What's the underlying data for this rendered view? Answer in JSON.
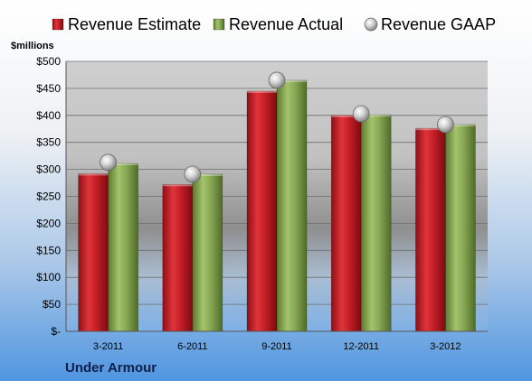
{
  "chart_data": {
    "type": "bar",
    "company": "Under Armour",
    "ylabel": "$millions",
    "categories": [
      "3-2011",
      "6-2011",
      "9-2011",
      "12-2011",
      "3-2012"
    ],
    "series": [
      {
        "name": "Revenue Estimate",
        "kind": "bar",
        "color": "#d0232b",
        "values": [
          292,
          272,
          445,
          400,
          376
        ]
      },
      {
        "name": "Revenue Actual",
        "kind": "bar",
        "color": "#8aac55",
        "values": [
          311,
          291,
          465,
          401,
          383
        ]
      },
      {
        "name": "Revenue GAAP",
        "kind": "marker",
        "color": "#bfbfbf",
        "values": [
          313,
          291,
          465,
          403,
          383
        ]
      }
    ],
    "ylim": [
      0,
      500
    ],
    "yticks": [
      0,
      50,
      100,
      150,
      200,
      250,
      300,
      350,
      400,
      450,
      500
    ],
    "ytick_labels": [
      "$-",
      "$50",
      "$100",
      "$150",
      "$200",
      "$250",
      "$300",
      "$350",
      "$400",
      "$450",
      "$500"
    ],
    "grid": true,
    "legend_position": "top"
  }
}
